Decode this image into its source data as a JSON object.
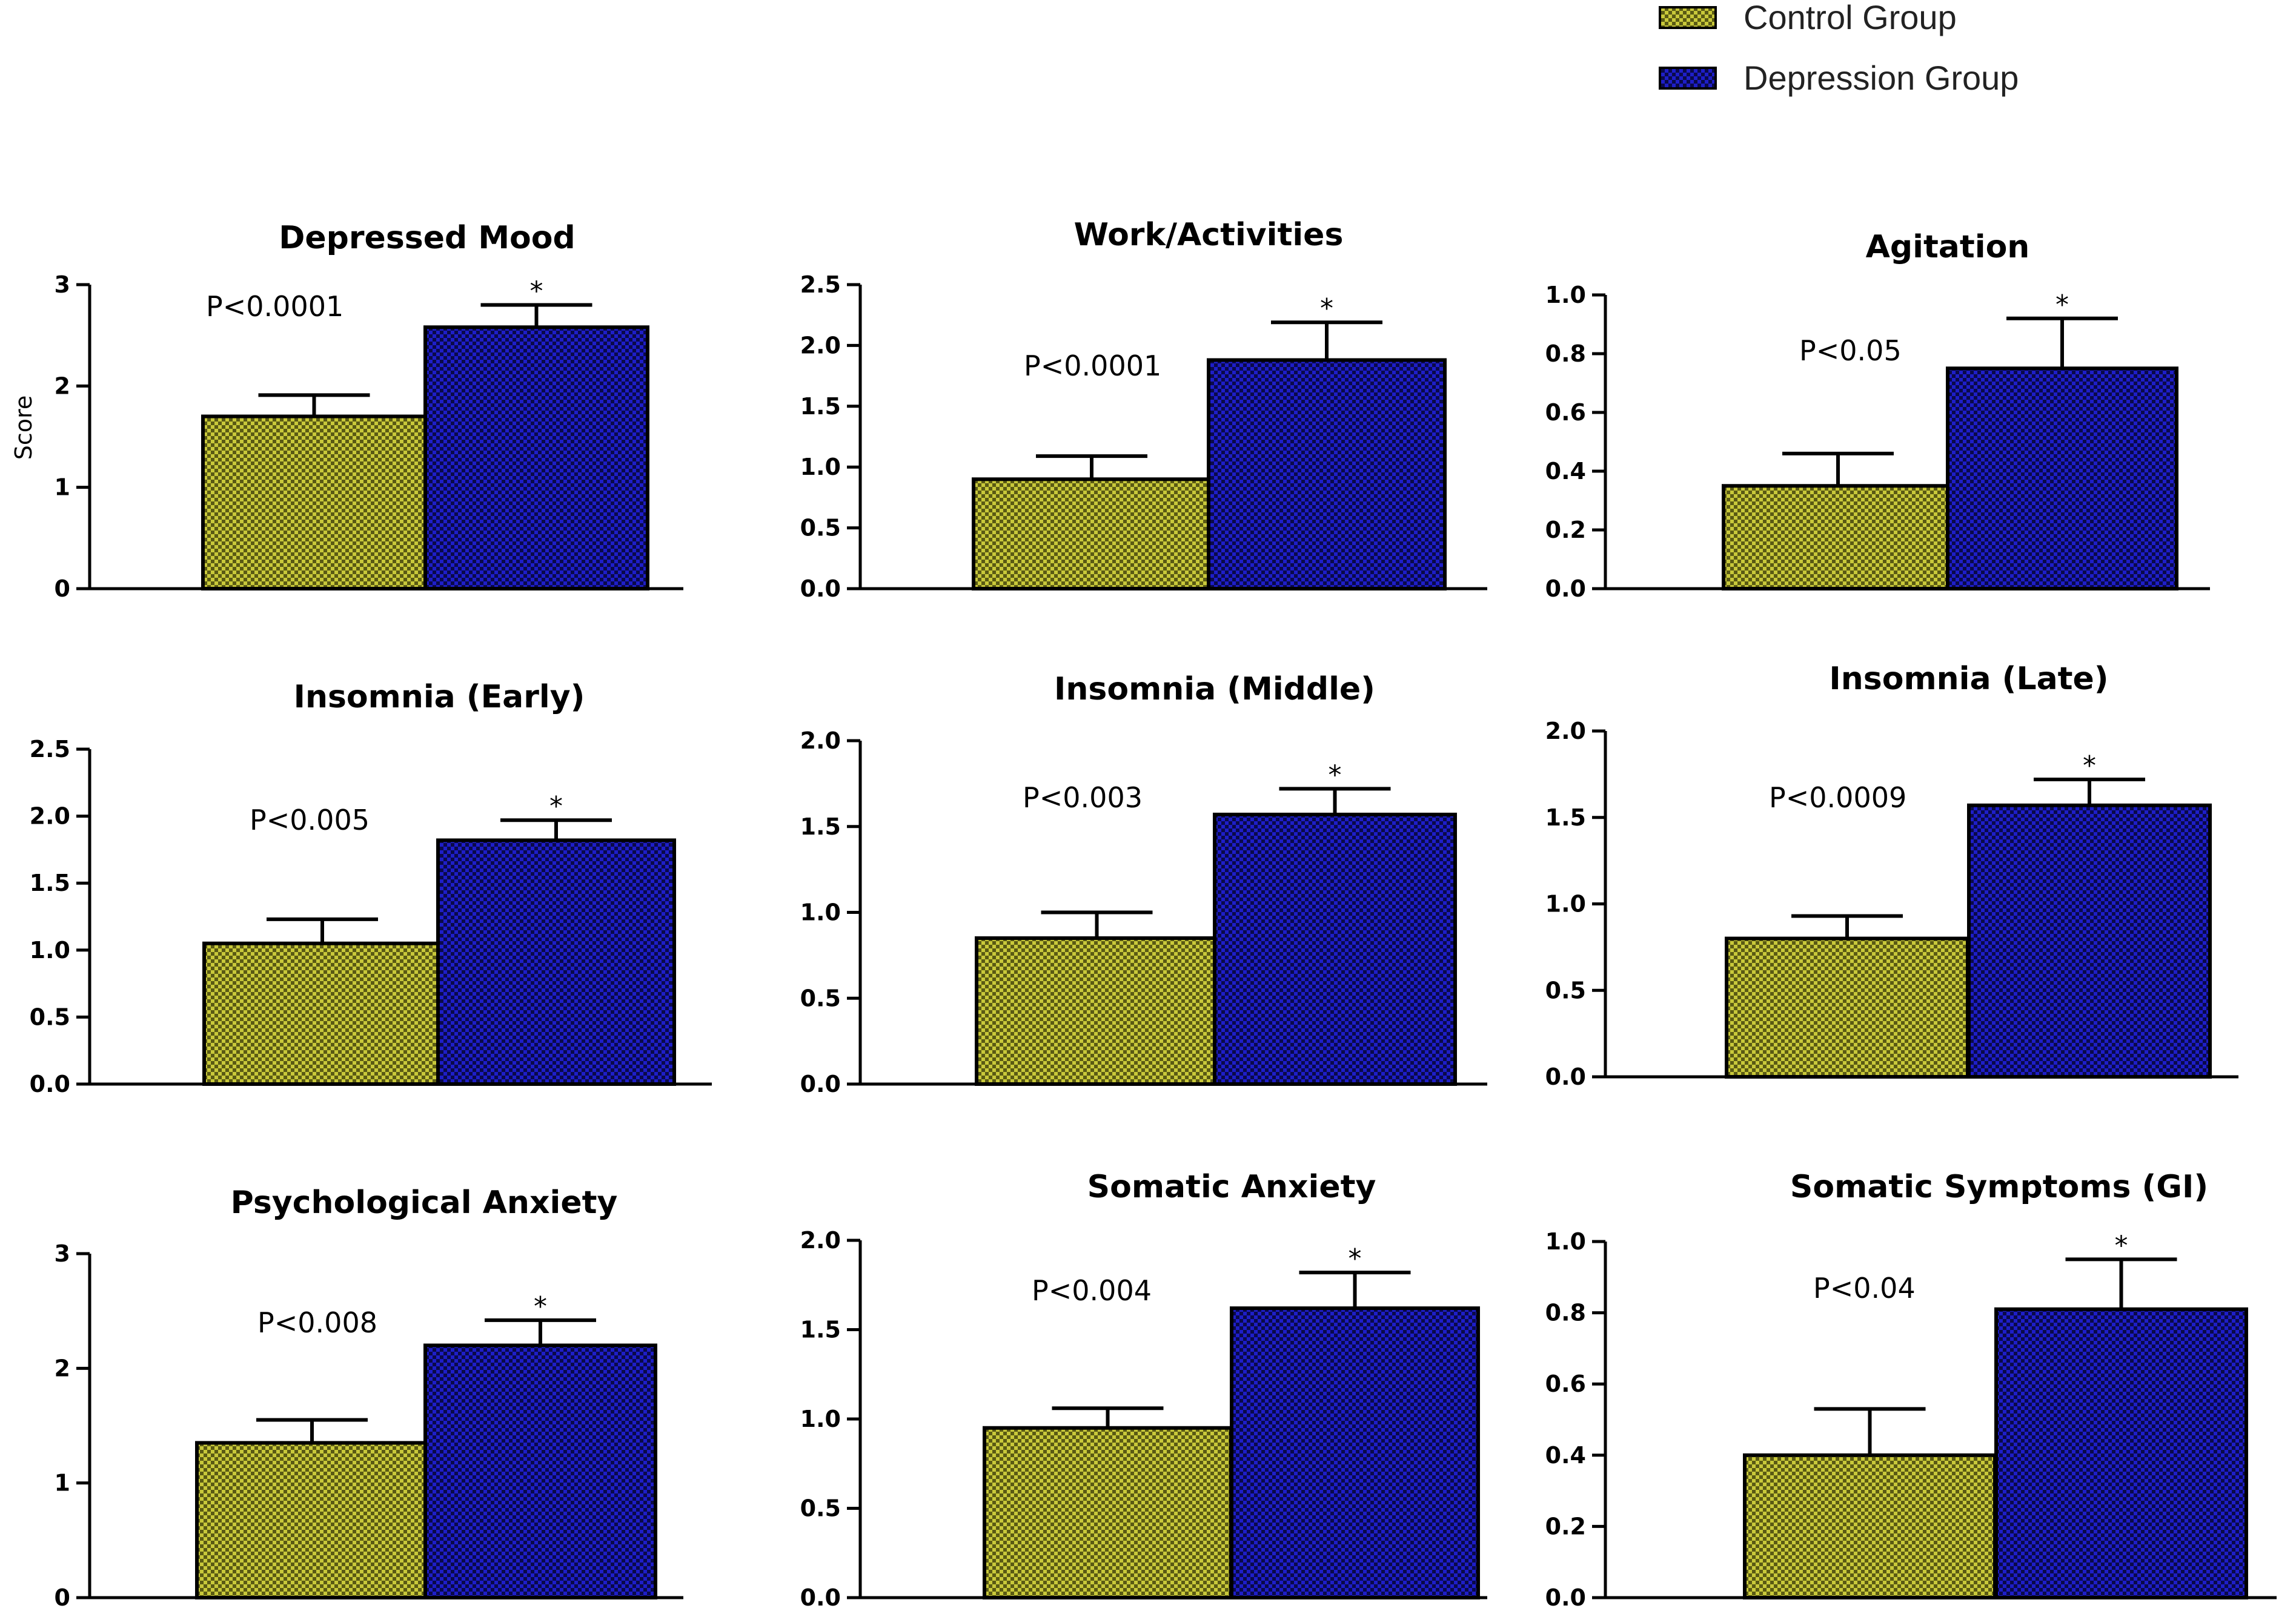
{
  "legend": {
    "control_label": "Control Group",
    "depression_label": "Depression Group",
    "control_color": "#c8c83a",
    "depression_color": "#1e1ec8"
  },
  "chart_data": [
    {
      "type": "bar",
      "title": "Depressed Mood",
      "ylabel": "Score",
      "categories": [
        "Control Group",
        "Depression Group"
      ],
      "values": [
        1.7,
        2.58
      ],
      "errors": [
        0.21,
        0.22
      ],
      "ylim": [
        0,
        3
      ],
      "yticks": [
        "0",
        "1",
        "2",
        "3"
      ],
      "ytick_values": [
        0,
        1,
        2,
        3
      ],
      "p_value": "P<0.0001",
      "significance": "*"
    },
    {
      "type": "bar",
      "title": "Work/Activities",
      "ylabel": "",
      "categories": [
        "Control Group",
        "Depression Group"
      ],
      "values": [
        0.9,
        1.88
      ],
      "errors": [
        0.19,
        0.31
      ],
      "ylim": [
        0,
        2.5
      ],
      "yticks": [
        "0.0",
        "0.5",
        "1.0",
        "1.5",
        "2.0",
        "2.5"
      ],
      "ytick_values": [
        0,
        0.5,
        1,
        1.5,
        2,
        2.5
      ],
      "p_value": "P<0.0001",
      "significance": "*"
    },
    {
      "type": "bar",
      "title": "Agitation",
      "ylabel": "",
      "categories": [
        "Control Group",
        "Depression Group"
      ],
      "values": [
        0.35,
        0.75
      ],
      "errors": [
        0.11,
        0.17
      ],
      "ylim": [
        0,
        1.0
      ],
      "yticks": [
        "0.0",
        "0.2",
        "0.4",
        "0.6",
        "0.8",
        "1.0"
      ],
      "ytick_values": [
        0,
        0.2,
        0.4,
        0.6,
        0.8,
        1.0
      ],
      "p_value": "P<0.05",
      "significance": "*"
    },
    {
      "type": "bar",
      "title": "Insomnia (Early)",
      "ylabel": "",
      "categories": [
        "Control Group",
        "Depression Group"
      ],
      "values": [
        1.05,
        1.82
      ],
      "errors": [
        0.18,
        0.15
      ],
      "ylim": [
        0,
        2.5
      ],
      "yticks": [
        "0.0",
        "0.5",
        "1.0",
        "1.5",
        "2.0",
        "2.5"
      ],
      "ytick_values": [
        0,
        0.5,
        1,
        1.5,
        2,
        2.5
      ],
      "p_value": "P<0.005",
      "significance": "*"
    },
    {
      "type": "bar",
      "title": "Insomnia (Middle)",
      "ylabel": "",
      "categories": [
        "Control Group",
        "Depression Group"
      ],
      "values": [
        0.85,
        1.57
      ],
      "errors": [
        0.15,
        0.15
      ],
      "ylim": [
        0,
        2.0
      ],
      "yticks": [
        "0.0",
        "0.5",
        "1.0",
        "1.5",
        "2.0"
      ],
      "ytick_values": [
        0,
        0.5,
        1,
        1.5,
        2
      ],
      "p_value": "P<0.003",
      "significance": "*"
    },
    {
      "type": "bar",
      "title": "Insomnia (Late)",
      "ylabel": "",
      "categories": [
        "Control Group",
        "Depression Group"
      ],
      "values": [
        0.8,
        1.57
      ],
      "errors": [
        0.13,
        0.15
      ],
      "ylim": [
        0,
        2.0
      ],
      "yticks": [
        "0.0",
        "0.5",
        "1.0",
        "1.5",
        "2.0"
      ],
      "ytick_values": [
        0,
        0.5,
        1,
        1.5,
        2
      ],
      "p_value": "P<0.0009",
      "significance": "*"
    },
    {
      "type": "bar",
      "title": "Psychological Anxiety",
      "ylabel": "",
      "categories": [
        "Control Group",
        "Depression Group"
      ],
      "values": [
        1.35,
        2.2
      ],
      "errors": [
        0.2,
        0.22
      ],
      "ylim": [
        0,
        3
      ],
      "yticks": [
        "0",
        "1",
        "2",
        "3"
      ],
      "ytick_values": [
        0,
        1,
        2,
        3
      ],
      "p_value": "P<0.008",
      "significance": "*"
    },
    {
      "type": "bar",
      "title": "Somatic Anxiety",
      "ylabel": "",
      "categories": [
        "Control Group",
        "Depression Group"
      ],
      "values": [
        0.95,
        1.62
      ],
      "errors": [
        0.11,
        0.2
      ],
      "ylim": [
        0,
        2.0
      ],
      "yticks": [
        "0.0",
        "0.5",
        "1.0",
        "1.5",
        "2.0"
      ],
      "ytick_values": [
        0,
        0.5,
        1,
        1.5,
        2
      ],
      "p_value": "P<0.004",
      "significance": "*"
    },
    {
      "type": "bar",
      "title": "Somatic Symptoms (GI)",
      "ylabel": "",
      "categories": [
        "Control Group",
        "Depression Group"
      ],
      "values": [
        0.4,
        0.81
      ],
      "errors": [
        0.13,
        0.14
      ],
      "ylim": [
        0,
        1.0
      ],
      "yticks": [
        "0.0",
        "0.2",
        "0.4",
        "0.6",
        "0.8",
        "1.0"
      ],
      "ytick_values": [
        0,
        0.2,
        0.4,
        0.6,
        0.8,
        1.0
      ],
      "p_value": "P<0.04",
      "significance": "*"
    }
  ]
}
